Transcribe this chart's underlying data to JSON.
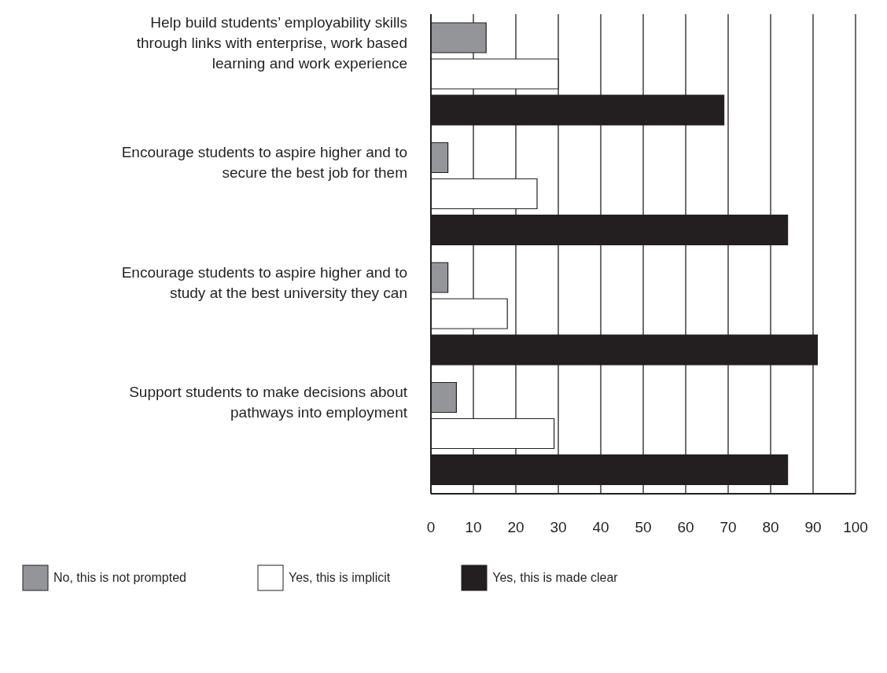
{
  "chart_data": {
    "type": "bar",
    "orientation": "horizontal",
    "categories": [
      "Help build students’ employability skills through links with enterprise, work based learning and work experience",
      "Encourage students to aspire higher and to secure the best job for them",
      "Encourage students to aspire higher and to study at the best university they can",
      "Support students to make decisions about pathways into employment"
    ],
    "series": [
      {
        "name": "No, this is not prompted",
        "color": "#939598",
        "values": [
          13,
          4,
          4,
          6
        ]
      },
      {
        "name": "Yes, this is implicit",
        "color": "#ffffff",
        "values": [
          30,
          25,
          18,
          29
        ]
      },
      {
        "name": "Yes, this is made clear",
        "color": "#231f20",
        "values": [
          69,
          84,
          91,
          84
        ]
      }
    ],
    "xlim": [
      0,
      100
    ],
    "xticks": [
      0,
      10,
      20,
      30,
      40,
      50,
      60,
      70,
      80,
      90,
      100
    ],
    "grid": "x",
    "legend": "bottom"
  }
}
